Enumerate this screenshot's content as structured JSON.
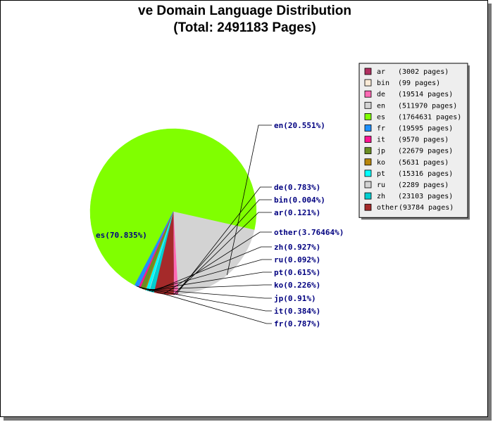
{
  "chart_data": {
    "type": "pie",
    "title": "ve Domain Language Distribution",
    "subtitle": "(Total: 2491183 Pages)",
    "legend_position": "top-right",
    "slices": [
      {
        "code": "es",
        "pages": 1764631,
        "percent_label": "es(70.835%)",
        "legend_pages": "(1764631 pages)",
        "color": "#80ff00"
      },
      {
        "code": "en",
        "pages": 511970,
        "percent_label": "en(20.551%)",
        "legend_pages": "(511970 pages)",
        "color": "#d3d3d3"
      },
      {
        "code": "de",
        "pages": 19514,
        "percent_label": "de(0.783%)",
        "legend_pages": "(19514 pages)",
        "color": "#ff69b4"
      },
      {
        "code": "bin",
        "pages": 99,
        "percent_label": "bin(0.004%)",
        "legend_pages": "(99 pages)",
        "color": "#faebd7"
      },
      {
        "code": "ar",
        "pages": 3002,
        "percent_label": "ar(0.121%)",
        "legend_pages": "(3002 pages)",
        "color": "#b03060"
      },
      {
        "code": "other",
        "pages": 93784,
        "percent_label": "other(3.76464%)",
        "legend_pages": "(93784 pages)",
        "color": "#a52a2a"
      },
      {
        "code": "zh",
        "pages": 23103,
        "percent_label": "zh(0.927%)",
        "legend_pages": "(23103 pages)",
        "color": "#00ced1"
      },
      {
        "code": "ru",
        "pages": 2289,
        "percent_label": "ru(0.092%)",
        "legend_pages": "(2289 pages)",
        "color": "#d3d3d3"
      },
      {
        "code": "pt",
        "pages": 15316,
        "percent_label": "pt(0.615%)",
        "legend_pages": "(15316 pages)",
        "color": "#00ffff"
      },
      {
        "code": "ko",
        "pages": 5631,
        "percent_label": "ko(0.226%)",
        "legend_pages": "(5631 pages)",
        "color": "#b8860b"
      },
      {
        "code": "jp",
        "pages": 22679,
        "percent_label": "jp(0.91%)",
        "legend_pages": "(22679 pages)",
        "color": "#6b8e23"
      },
      {
        "code": "it",
        "pages": 9570,
        "percent_label": "it(0.384%)",
        "legend_pages": "(9570 pages)",
        "color": "#ff1493"
      },
      {
        "code": "fr",
        "pages": 19595,
        "percent_label": "fr(0.787%)",
        "legend_pages": "(19595 pages)",
        "color": "#1e90ff"
      }
    ],
    "legend_order": [
      "ar",
      "bin",
      "de",
      "en",
      "es",
      "fr",
      "it",
      "jp",
      "ko",
      "pt",
      "ru",
      "zh",
      "other"
    ]
  }
}
